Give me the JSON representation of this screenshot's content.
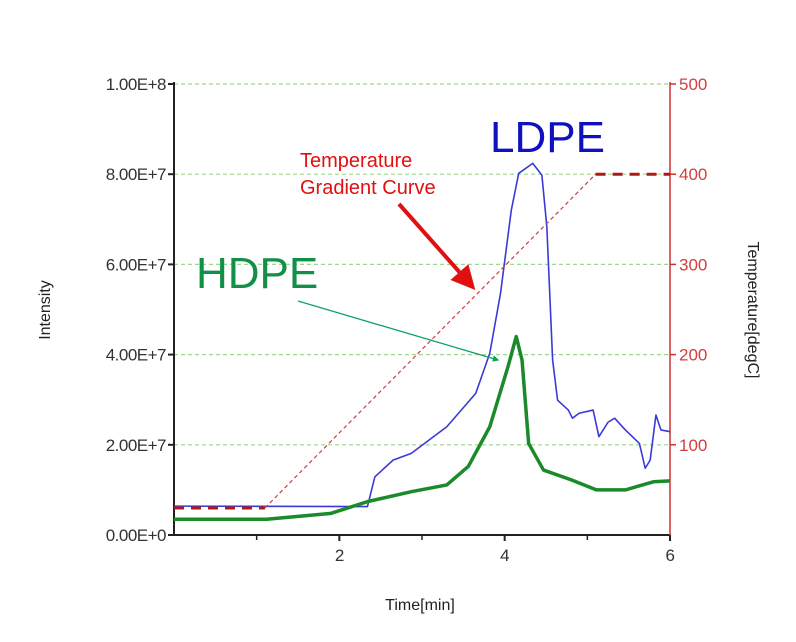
{
  "chart_data": {
    "type": "line",
    "xlabel": "Time[min]",
    "ylabel": "Intensity",
    "y2label": "Temperature[degC]",
    "xlim": [
      0,
      6
    ],
    "ylim": [
      0,
      100000000
    ],
    "y2lim": [
      0,
      500
    ],
    "xticks": [
      "2",
      "4",
      "6"
    ],
    "xtick_values": [
      2,
      4,
      6
    ],
    "xminor_values": [
      1,
      3,
      5
    ],
    "yticks": [
      "0.00E+0",
      "2.00E+7",
      "4.00E+7",
      "6.00E+7",
      "8.00E+7",
      "1.00E+8"
    ],
    "ytick_values": [
      0,
      20000000,
      40000000,
      60000000,
      80000000,
      100000000
    ],
    "y2ticks": [
      "100",
      "200",
      "300",
      "400",
      "500"
    ],
    "y2tick_values": [
      100,
      200,
      300,
      400,
      500
    ],
    "grid": "horizontal dashed green",
    "series": [
      {
        "name": "LDPE",
        "color": "#3a3ad8",
        "axis": "left",
        "x": [
          0,
          2.34,
          2.43,
          2.65,
          2.87,
          3.3,
          3.65,
          3.82,
          3.95,
          4.08,
          4.17,
          4.34,
          4.45,
          4.51,
          4.58,
          4.64,
          4.77,
          4.82,
          4.9,
          5.07,
          5.14,
          5.25,
          5.33,
          5.46,
          5.63,
          5.7,
          5.76,
          5.83,
          5.89,
          6
        ],
        "y": [
          6400000,
          6300000,
          12900000,
          16600000,
          18100000,
          24000000,
          31400000,
          40300000,
          53600000,
          72000000,
          80200000,
          82400000,
          79800000,
          68400000,
          38800000,
          29900000,
          27700000,
          25900000,
          27000000,
          27700000,
          21800000,
          25000000,
          25900000,
          23300000,
          20300000,
          14800000,
          16600000,
          26600000,
          23300000,
          22900000
        ]
      },
      {
        "name": "HDPE",
        "color": "#1a8a2a",
        "axis": "left",
        "x": [
          0,
          1.12,
          1.9,
          2.34,
          2.87,
          3.3,
          3.56,
          3.82,
          4.04,
          4.14,
          4.21,
          4.29,
          4.47,
          4.81,
          5.11,
          5.46,
          5.8,
          6
        ],
        "y": [
          3500000,
          3500000,
          4800000,
          7400000,
          9600000,
          11100000,
          15200000,
          24000000,
          37300000,
          44000000,
          38800000,
          20300000,
          14400000,
          12200000,
          10000000,
          10000000,
          11800000,
          12000000
        ]
      },
      {
        "name": "Temperature Gradient Curve",
        "color": "#c02020",
        "axis": "right",
        "style": "dashed",
        "x": [
          0,
          1.1,
          5.1,
          6
        ],
        "y": [
          30,
          30,
          400,
          400
        ]
      }
    ],
    "annotations": {
      "ldpe_label": "LDPE",
      "hdpe_label": "HDPE",
      "temp_label_line1": "Temperature",
      "temp_label_line2": "Gradient Curve"
    }
  }
}
